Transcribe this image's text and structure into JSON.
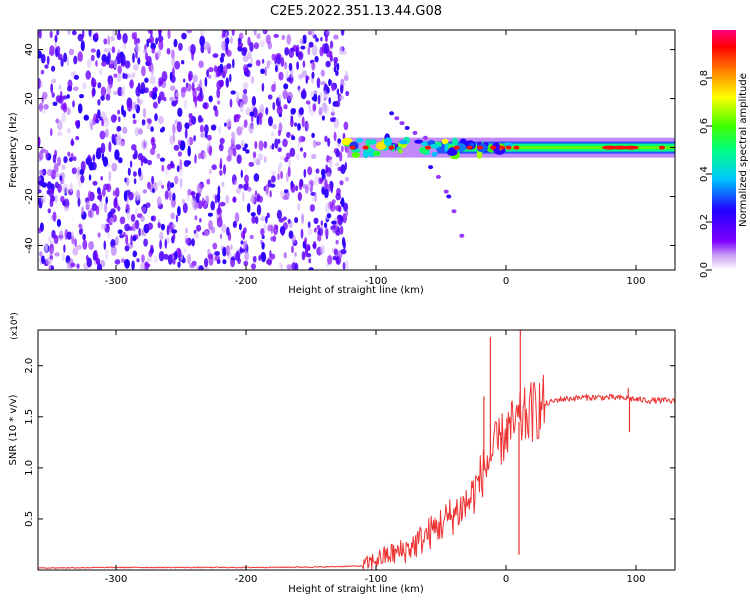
{
  "figure": {
    "title": "C2E5.2022.351.13.44.G08"
  },
  "chart_data": [
    {
      "type": "heatmap",
      "xlabel": "Height of straight line (km)",
      "ylabel": "Frequency (Hz)",
      "xlim": [
        -360,
        130
      ],
      "ylim": [
        -50,
        48
      ],
      "x_ticks": [
        -300,
        -200,
        -100,
        0,
        100
      ],
      "y_ticks": [
        -40,
        -20,
        0,
        20,
        40
      ],
      "x_tick_labels": [
        "-300",
        "-200",
        "-100",
        "0",
        "100"
      ],
      "y_tick_labels": [
        "-40",
        "-20",
        "0",
        "20",
        "40"
      ],
      "colorbar": {
        "label": "Normalized spectral amplitude",
        "range": [
          0,
          1
        ],
        "ticks": [
          0.0,
          0.2,
          0.4,
          0.6,
          0.8
        ],
        "tick_labels": [
          "0.0",
          "0.2",
          "0.4",
          "0.6",
          "0.8"
        ],
        "colors": [
          "#ffffff",
          "#c9a0f5",
          "#8000ff",
          "#2000ff",
          "#00c8ff",
          "#00ff80",
          "#40ff00",
          "#ffff00",
          "#ff8000",
          "#ff0000",
          "#ff0080"
        ]
      },
      "regions": [
        {
          "name": "noise",
          "x_range": [
            -360,
            -122
          ],
          "y_range": [
            -50,
            48
          ],
          "amplitude": 0.2
        },
        {
          "name": "signal",
          "x_range": [
            -122,
            130
          ],
          "center_frequency": 0,
          "amplitude": 0.8
        }
      ],
      "grid": false
    },
    {
      "type": "line",
      "xlabel": "Height of straight line (km)",
      "ylabel": "SNR (10 * v/v)",
      "y_multiplier": "(x10⁴)",
      "xlim": [
        -360,
        130
      ],
      "ylim": [
        0,
        2.35
      ],
      "x_ticks": [
        -300,
        -200,
        -100,
        0,
        100
      ],
      "y_ticks": [
        0.5,
        1.0,
        1.5,
        2.0
      ],
      "x_tick_labels": [
        "-300",
        "-200",
        "-100",
        "0",
        "100"
      ],
      "y_tick_labels": [
        "0.5",
        "1.0",
        "1.5",
        "2.0"
      ],
      "color": "#ee3333",
      "series": [
        {
          "x": [
            -360,
            -300,
            -200,
            -140,
            -110,
            -100,
            -90,
            -80,
            -70,
            -60,
            -50,
            -40,
            -30,
            -25,
            -20,
            -16,
            -12,
            -8,
            -5,
            -2,
            0,
            5,
            10,
            20,
            30,
            40,
            50,
            60,
            80,
            95,
            100,
            110,
            120,
            130
          ],
          "values": [
            0.02,
            0.025,
            0.025,
            0.03,
            0.04,
            0.1,
            0.15,
            0.18,
            0.25,
            0.35,
            0.45,
            0.55,
            0.65,
            0.75,
            0.9,
            1.0,
            1.1,
            1.2,
            1.25,
            1.3,
            1.35,
            1.4,
            1.45,
            1.55,
            1.62,
            1.67,
            1.68,
            1.69,
            1.69,
            1.68,
            1.67,
            1.66,
            1.66,
            1.65
          ]
        }
      ],
      "spikes": [
        {
          "x": -12,
          "value": 2.28
        },
        {
          "x": 11,
          "value": 2.35
        },
        {
          "x": -17,
          "value": 1.7
        },
        {
          "x": 10,
          "value": 0.15
        },
        {
          "x": 95,
          "value": 1.35
        },
        {
          "x": 94,
          "value": 1.78
        }
      ],
      "grid": false
    }
  ]
}
